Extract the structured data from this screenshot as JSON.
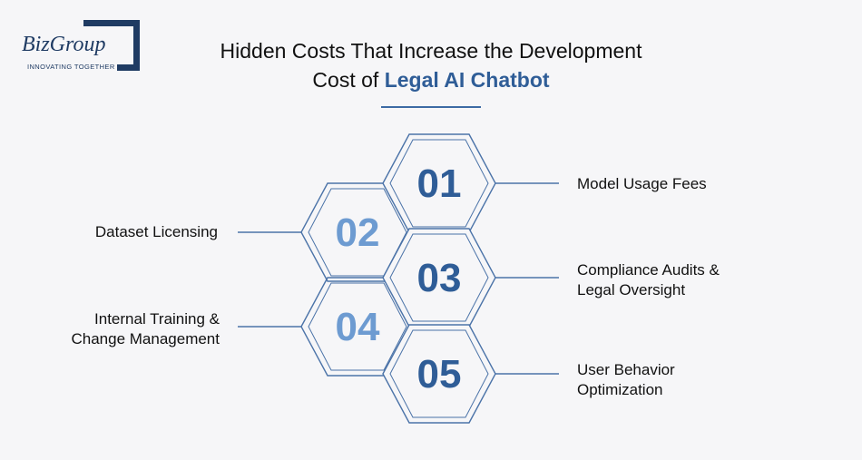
{
  "logo": {
    "name": "BizGroup",
    "tagline": "INNOVATING TOGETHER"
  },
  "title": {
    "line1": "Hidden Costs That Increase the Development",
    "line2_prefix": "Cost of ",
    "line2_accent": "Legal AI Chatbot"
  },
  "items": [
    {
      "number": "01",
      "label": "Model Usage Fees"
    },
    {
      "number": "02",
      "label": "Dataset Licensing"
    },
    {
      "number": "03",
      "label_line1": "Compliance Audits &",
      "label_line2": "Legal Oversight"
    },
    {
      "number": "04",
      "label_line1": "Internal Training &",
      "label_line2": "Change Management"
    },
    {
      "number": "05",
      "label_line1": "User Behavior",
      "label_line2": "Optimization"
    }
  ],
  "colors": {
    "dark_blue": "#2f5d97",
    "light_blue": "#6d9bd1",
    "line": "#4b73a8",
    "navy": "#1f3b63"
  }
}
